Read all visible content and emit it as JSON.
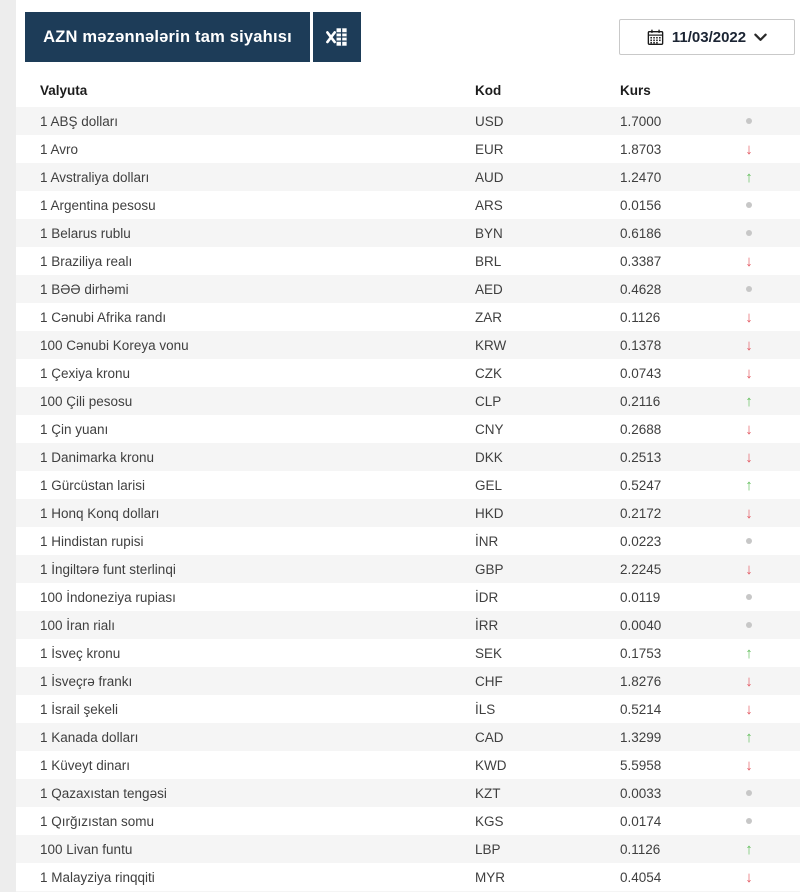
{
  "header": {
    "title": "AZN məzənnələrin tam siyahısı",
    "date": "11/03/2022",
    "icons": {
      "excel": "excel-export-icon",
      "calendar": "calendar-icon",
      "chevron": "chevron-down-icon"
    }
  },
  "table": {
    "columns": [
      "Valyuta",
      "Kod",
      "Kurs"
    ],
    "trend_legend": {
      "up": "rate increased",
      "down": "rate decreased",
      "same": "rate unchanged"
    },
    "rows": [
      {
        "name": "1 ABŞ dolları",
        "code": "USD",
        "rate": "1.7000",
        "trend": "same"
      },
      {
        "name": "1 Avro",
        "code": "EUR",
        "rate": "1.8703",
        "trend": "down"
      },
      {
        "name": "1 Avstraliya dolları",
        "code": "AUD",
        "rate": "1.2470",
        "trend": "up"
      },
      {
        "name": "1 Argentina pesosu",
        "code": "ARS",
        "rate": "0.0156",
        "trend": "same"
      },
      {
        "name": "1 Belarus rublu",
        "code": "BYN",
        "rate": "0.6186",
        "trend": "same"
      },
      {
        "name": "1 Braziliya realı",
        "code": "BRL",
        "rate": "0.3387",
        "trend": "down"
      },
      {
        "name": "1 BƏƏ dirhəmi",
        "code": "AED",
        "rate": "0.4628",
        "trend": "same"
      },
      {
        "name": "1 Cənubi Afrika randı",
        "code": "ZAR",
        "rate": "0.1126",
        "trend": "down"
      },
      {
        "name": "100 Cənubi Koreya vonu",
        "code": "KRW",
        "rate": "0.1378",
        "trend": "down"
      },
      {
        "name": "1 Çexiya kronu",
        "code": "CZK",
        "rate": "0.0743",
        "trend": "down"
      },
      {
        "name": "100 Çili pesosu",
        "code": "CLP",
        "rate": "0.2116",
        "trend": "up"
      },
      {
        "name": "1 Çin yuanı",
        "code": "CNY",
        "rate": "0.2688",
        "trend": "down"
      },
      {
        "name": "1 Danimarka kronu",
        "code": "DKK",
        "rate": "0.2513",
        "trend": "down"
      },
      {
        "name": "1 Gürcüstan larisi",
        "code": "GEL",
        "rate": "0.5247",
        "trend": "up"
      },
      {
        "name": "1 Honq Konq dolları",
        "code": "HKD",
        "rate": "0.2172",
        "trend": "down"
      },
      {
        "name": "1 Hindistan rupisi",
        "code": "İNR",
        "rate": "0.0223",
        "trend": "same"
      },
      {
        "name": "1 İngiltərə funt sterlinqi",
        "code": "GBP",
        "rate": "2.2245",
        "trend": "down"
      },
      {
        "name": "100 İndoneziya rupiası",
        "code": "İDR",
        "rate": "0.0119",
        "trend": "same"
      },
      {
        "name": "100 İran rialı",
        "code": "İRR",
        "rate": "0.0040",
        "trend": "same"
      },
      {
        "name": "1 İsveç kronu",
        "code": "SEK",
        "rate": "0.1753",
        "trend": "up"
      },
      {
        "name": "1 İsveçrə frankı",
        "code": "CHF",
        "rate": "1.8276",
        "trend": "down"
      },
      {
        "name": "1 İsrail şekeli",
        "code": "İLS",
        "rate": "0.5214",
        "trend": "down"
      },
      {
        "name": "1 Kanada dolları",
        "code": "CAD",
        "rate": "1.3299",
        "trend": "up"
      },
      {
        "name": "1 Küveyt dinarı",
        "code": "KWD",
        "rate": "5.5958",
        "trend": "down"
      },
      {
        "name": "1 Qazaxıstan tengəsi",
        "code": "KZT",
        "rate": "0.0033",
        "trend": "same"
      },
      {
        "name": "1 Qırğızıstan somu",
        "code": "KGS",
        "rate": "0.0174",
        "trend": "same"
      },
      {
        "name": "100 Livan funtu",
        "code": "LBP",
        "rate": "0.1126",
        "trend": "up"
      },
      {
        "name": "1 Malayziya rinqqiti",
        "code": "MYR",
        "rate": "0.4054",
        "trend": "down"
      }
    ]
  },
  "colors": {
    "navy": "#1d3c58",
    "stripe": "#f5f5f5",
    "up": "#5fbd58",
    "down": "#e2545e",
    "neutral": "#c7c7c7"
  }
}
